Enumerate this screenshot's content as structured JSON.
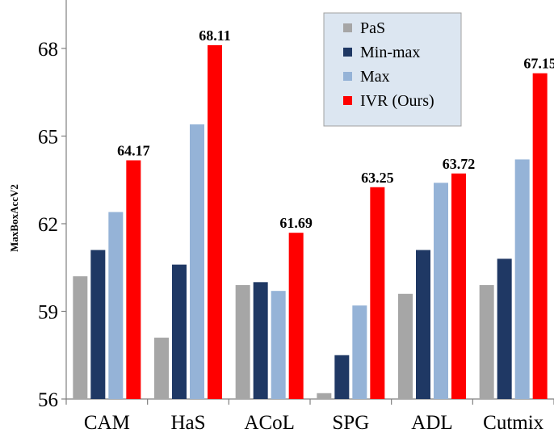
{
  "chart_data": {
    "type": "bar",
    "title": "",
    "xlabel": "",
    "ylabel": "MaxBoxAccV2",
    "ylim": [
      56,
      69
    ],
    "yticks": [
      56,
      59,
      62,
      65,
      68
    ],
    "grid": false,
    "legend_position": "top-right",
    "categories": [
      "CAM",
      "HaS",
      "ACoL",
      "SPG",
      "ADL",
      "Cutmix"
    ],
    "series": [
      {
        "name": "PaS",
        "color": "#a6a6a6",
        "values": [
          60.2,
          58.1,
          59.9,
          56.2,
          59.6,
          59.9
        ]
      },
      {
        "name": "Min-max",
        "color": "#1f3864",
        "values": [
          61.1,
          60.6,
          60.0,
          57.5,
          61.1,
          60.8
        ]
      },
      {
        "name": "Max",
        "color": "#95b3d7",
        "values": [
          62.4,
          65.4,
          59.7,
          59.2,
          63.4,
          64.2
        ]
      },
      {
        "name": "IVR (Ours)",
        "color": "#ff0000",
        "values": [
          64.17,
          68.11,
          61.69,
          63.25,
          63.72,
          67.15
        ]
      }
    ],
    "data_labels": {
      "series": "IVR (Ours)",
      "labels": [
        "64.17",
        "68.11",
        "61.69",
        "63.25",
        "63.72",
        "67.15"
      ]
    }
  }
}
